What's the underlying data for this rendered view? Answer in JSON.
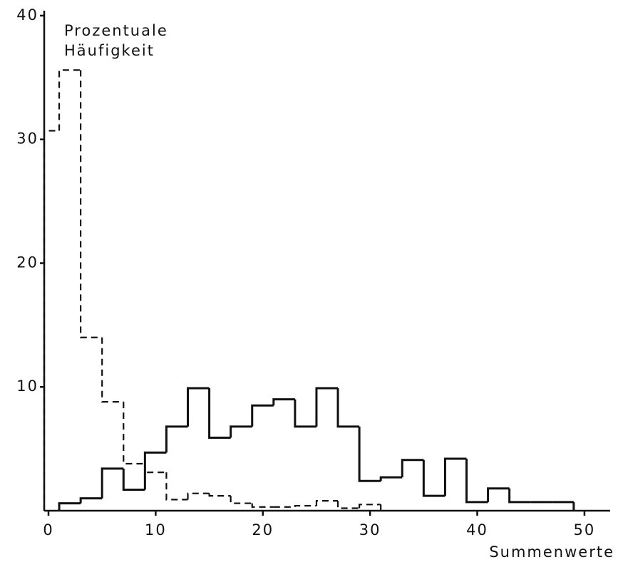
{
  "chart_data": {
    "type": "histogram",
    "y_label": [
      "Prozentuale",
      "Häufigkeit"
    ],
    "x_label": "Summenwerte",
    "xlim": [
      -0.4,
      52
    ],
    "xticks": [
      0,
      10,
      20,
      30,
      40,
      50
    ],
    "ylim": [
      0,
      40.4
    ],
    "yticks": [
      10,
      20,
      30,
      40
    ],
    "series": [
      {
        "color": "#111111",
        "style": "solid",
        "bins": [
          1,
          3,
          5,
          7,
          9,
          11,
          13,
          15,
          17,
          19,
          21,
          23,
          25,
          27,
          29,
          31,
          33,
          35,
          37,
          39,
          41,
          43,
          45,
          47,
          49
        ],
        "values": [
          0.6,
          1.0,
          3.4,
          1.7,
          4.7,
          6.8,
          9.9,
          5.9,
          6.8,
          8.5,
          9.0,
          6.8,
          9.9,
          6.8,
          2.4,
          2.7,
          4.1,
          1.2,
          4.2,
          0.7,
          1.8,
          0.7,
          0.7,
          0.7
        ]
      },
      {
        "color": "#111111",
        "style": "dashed",
        "bins": [
          -1,
          1,
          3,
          5,
          7,
          9,
          11,
          13,
          15,
          17,
          19,
          21,
          23,
          25,
          27,
          29,
          31
        ],
        "values": [
          30.7,
          35.6,
          14,
          8.8,
          3.8,
          3.1,
          0.9,
          1.4,
          1.2,
          0.6,
          0.3,
          0.3,
          0.4,
          0.8,
          0.2,
          0.5
        ]
      }
    ]
  }
}
